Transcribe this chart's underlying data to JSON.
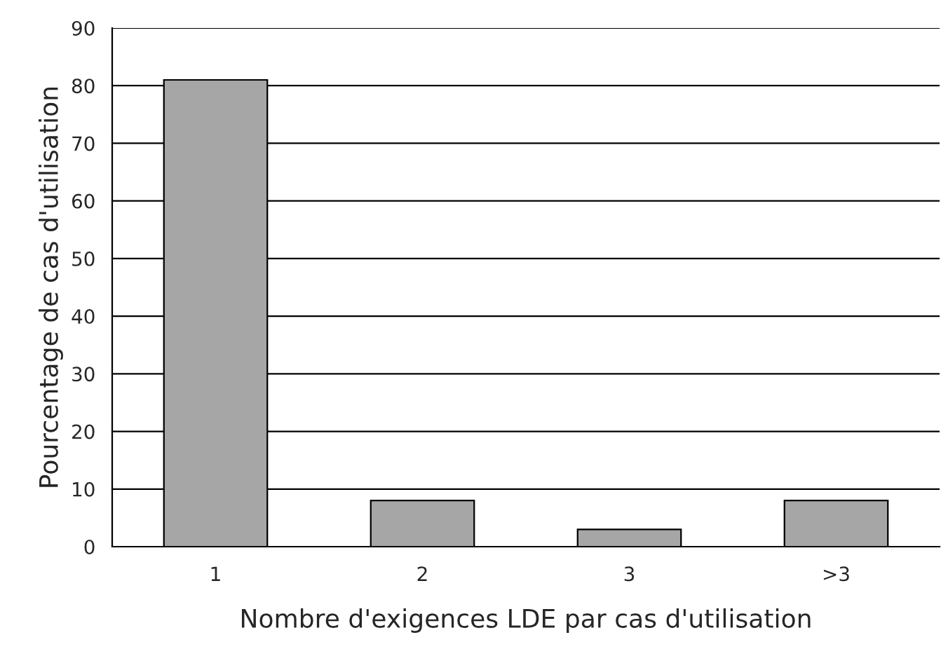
{
  "chart_data": {
    "type": "bar",
    "xlabel": "Nombre d'exigences LDE par cas d'utilisation",
    "ylabel": "Pourcentage de cas d'utilisation",
    "categories": [
      "1",
      "2",
      "3",
      ">3"
    ],
    "values": [
      81,
      8,
      3,
      8
    ],
    "color": "#a6a6a6",
    "ylim": [
      0,
      90
    ],
    "yticks": [
      0,
      10,
      20,
      30,
      40,
      50,
      60,
      70,
      80,
      90
    ],
    "grid": "y",
    "legend": false
  }
}
